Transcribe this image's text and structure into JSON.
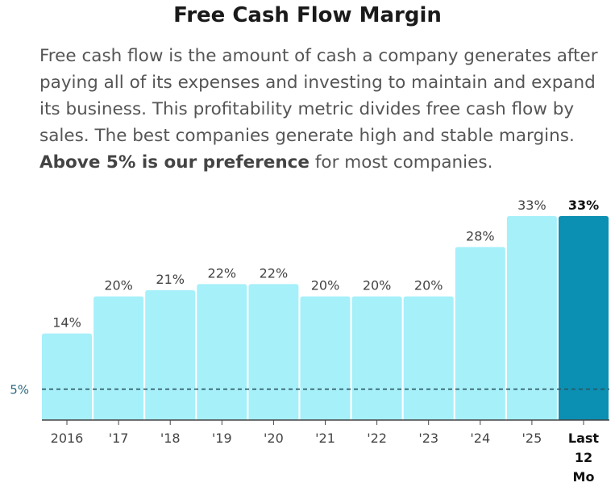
{
  "title": "Free Cash Flow Margin",
  "description": {
    "text_before": "Free cash flow is the amount of cash a company generates after paying all of its expenses and investing to maintain and expand its business. This profitability metric divides free cash flow by sales. The best companies generate high and stable margins.",
    "emphasis": "Above 5% is our preference",
    "text_after": "for most companies."
  },
  "chart_data": {
    "type": "bar",
    "title": "Free Cash Flow Margin",
    "categories": [
      "2016",
      "'17",
      "'18",
      "'19",
      "'20",
      "'21",
      "'22",
      "'23",
      "'24",
      "'25",
      "Last 12 Mo"
    ],
    "values": [
      14,
      20,
      21,
      22,
      22,
      20,
      20,
      20,
      28,
      33,
      33
    ],
    "labels": [
      "14%",
      "20%",
      "21%",
      "22%",
      "22%",
      "20%",
      "20%",
      "20%",
      "28%",
      "33%",
      "33%"
    ],
    "unit": "%",
    "ylim": [
      0,
      33
    ],
    "reference_line": {
      "value": 5,
      "label": "5%"
    },
    "highlight_index": 10,
    "colors": {
      "bar": "#a6f0fa",
      "bar_highlight": "#0b8fb2",
      "reference_line": "#2a5560",
      "reference_label": "#2a6a80",
      "axis": "#444444",
      "label": "#444444"
    }
  }
}
